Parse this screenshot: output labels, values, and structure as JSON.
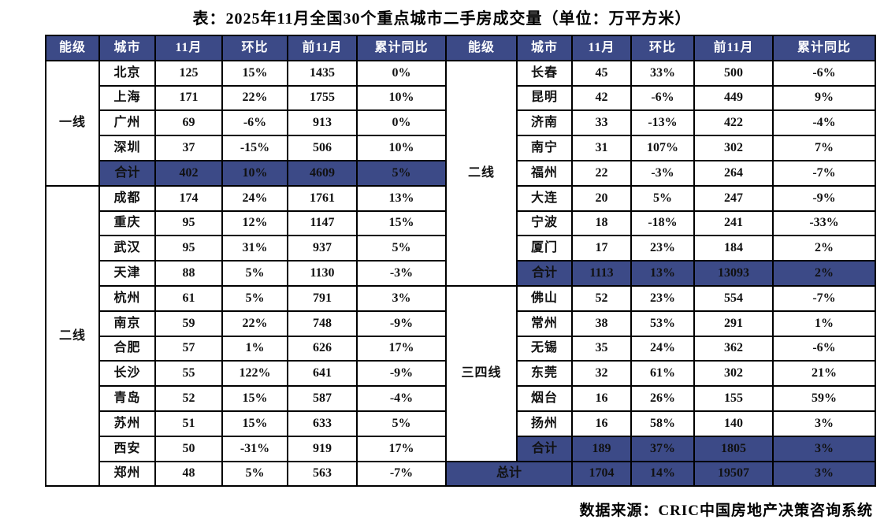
{
  "page": {
    "source": "数据来源：CRIC中国房地产决策咨询系统"
  },
  "colors": {
    "header_bg": "#3C4A87",
    "summary_bg": "#3C4A87",
    "highlight_red": "#FF0000",
    "border": "#000000",
    "header_text": "#FFFFFF"
  },
  "chart_data": {
    "type": "table",
    "title": "表：2025年11月全国30个重点城市二手房成交量（单位：万平方米）",
    "columns": [
      "能级",
      "城市",
      "11月",
      "环比",
      "前11月",
      "累计同比"
    ],
    "legend": "red cells = highlighted month-over-month increases",
    "rows": [
      {
        "left": {
          "tier": {
            "label": "一线",
            "rowspan": 5
          },
          "type": "city",
          "cells": [
            "北京",
            "125",
            "15%",
            "1435",
            "0%"
          ],
          "red": [
            2
          ]
        },
        "right": {
          "tier": {
            "label": "二线",
            "rowspan": 9
          },
          "type": "city",
          "cells": [
            "长春",
            "45",
            "33%",
            "500",
            "-6%"
          ],
          "red": []
        }
      },
      {
        "left": {
          "type": "city",
          "cells": [
            "上海",
            "171",
            "22%",
            "1755",
            "10%"
          ],
          "red": [
            2
          ]
        },
        "right": {
          "type": "city",
          "cells": [
            "昆明",
            "42",
            "-6%",
            "449",
            "9%"
          ],
          "red": []
        }
      },
      {
        "left": {
          "type": "city",
          "cells": [
            "广州",
            "69",
            "-6%",
            "913",
            "0%"
          ],
          "red": []
        },
        "right": {
          "type": "city",
          "cells": [
            "济南",
            "33",
            "-13%",
            "422",
            "-4%"
          ],
          "red": []
        }
      },
      {
        "left": {
          "type": "city",
          "cells": [
            "深圳",
            "37",
            "-15%",
            "506",
            "10%"
          ],
          "red": []
        },
        "right": {
          "type": "city",
          "cells": [
            "南宁",
            "31",
            "107%",
            "302",
            "7%"
          ],
          "red": [
            2
          ]
        }
      },
      {
        "left": {
          "type": "summary",
          "cells": [
            "合计",
            "402",
            "10%",
            "4609",
            "5%"
          ],
          "red": []
        },
        "right": {
          "type": "city",
          "cells": [
            "福州",
            "22",
            "-3%",
            "264",
            "-7%"
          ],
          "red": []
        }
      },
      {
        "left": {
          "tier": {
            "label": "二线",
            "rowspan": 12
          },
          "type": "city",
          "cells": [
            "成都",
            "174",
            "24%",
            "1761",
            "13%"
          ],
          "red": [
            2
          ]
        },
        "right": {
          "type": "city",
          "cells": [
            "大连",
            "20",
            "5%",
            "247",
            "-9%"
          ],
          "red": []
        }
      },
      {
        "left": {
          "type": "city",
          "cells": [
            "重庆",
            "95",
            "12%",
            "1147",
            "15%"
          ],
          "red": []
        },
        "right": {
          "type": "city",
          "cells": [
            "宁波",
            "18",
            "-18%",
            "241",
            "-33%"
          ],
          "red": []
        }
      },
      {
        "left": {
          "type": "city",
          "cells": [
            "武汉",
            "95",
            "31%",
            "937",
            "5%"
          ],
          "red": [
            2
          ]
        },
        "right": {
          "type": "city",
          "cells": [
            "厦门",
            "17",
            "23%",
            "184",
            "2%"
          ],
          "red": []
        }
      },
      {
        "left": {
          "type": "city",
          "cells": [
            "天津",
            "88",
            "5%",
            "1130",
            "-3%"
          ],
          "red": []
        },
        "right": {
          "type": "summary",
          "cells": [
            "合计",
            "1113",
            "13%",
            "13093",
            "2%"
          ],
          "red": []
        }
      },
      {
        "left": {
          "type": "city",
          "cells": [
            "杭州",
            "61",
            "5%",
            "791",
            "3%"
          ],
          "red": []
        },
        "right": {
          "tier": {
            "label": "三四线",
            "rowspan": 7
          },
          "type": "city",
          "cells": [
            "佛山",
            "52",
            "23%",
            "554",
            "-7%"
          ],
          "red": []
        }
      },
      {
        "left": {
          "type": "city",
          "cells": [
            "南京",
            "59",
            "22%",
            "748",
            "-9%"
          ],
          "red": [
            2
          ]
        },
        "right": {
          "type": "city",
          "cells": [
            "常州",
            "38",
            "53%",
            "291",
            "1%"
          ],
          "red": [
            2
          ]
        }
      },
      {
        "left": {
          "type": "city",
          "cells": [
            "合肥",
            "57",
            "1%",
            "626",
            "17%"
          ],
          "red": []
        },
        "right": {
          "type": "city",
          "cells": [
            "无锡",
            "35",
            "24%",
            "362",
            "-6%"
          ],
          "red": []
        }
      },
      {
        "left": {
          "type": "city",
          "cells": [
            "长沙",
            "55",
            "122%",
            "641",
            "-9%"
          ],
          "red": [
            2
          ]
        },
        "right": {
          "type": "city",
          "cells": [
            "东莞",
            "32",
            "61%",
            "302",
            "21%"
          ],
          "red": []
        }
      },
      {
        "left": {
          "type": "city",
          "cells": [
            "青岛",
            "52",
            "15%",
            "587",
            "-4%"
          ],
          "red": []
        },
        "right": {
          "type": "city",
          "cells": [
            "烟台",
            "16",
            "26%",
            "155",
            "59%"
          ],
          "red": [
            2
          ]
        }
      },
      {
        "left": {
          "type": "city",
          "cells": [
            "苏州",
            "51",
            "15%",
            "633",
            "5%"
          ],
          "red": []
        },
        "right": {
          "type": "city",
          "cells": [
            "扬州",
            "16",
            "58%",
            "140",
            "3%"
          ],
          "red": []
        }
      },
      {
        "left": {
          "type": "city",
          "cells": [
            "西安",
            "50",
            "-31%",
            "919",
            "17%"
          ],
          "red": []
        },
        "right": {
          "type": "summary",
          "cells": [
            "合计",
            "189",
            "37%",
            "1805",
            "3%"
          ],
          "red": []
        }
      },
      {
        "left": {
          "type": "city",
          "cells": [
            "郑州",
            "48",
            "5%",
            "563",
            "-7%"
          ],
          "red": []
        },
        "right": {
          "type": "total",
          "label": "总计",
          "cells": [
            "1704",
            "14%",
            "19507",
            "3%"
          ],
          "red": []
        }
      }
    ]
  }
}
